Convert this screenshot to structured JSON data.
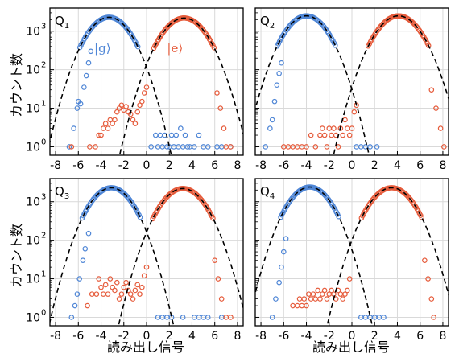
{
  "chart_data": {
    "type": "scatter",
    "ylabel": "カウント数",
    "xlabel": "読み出し信号",
    "ylog": true,
    "xlim": [
      -8.5,
      8.5
    ],
    "ylim_log10": [
      -0.22,
      3.6
    ],
    "xticks": [
      -8,
      -6,
      -4,
      -2,
      0,
      2,
      4,
      6,
      8
    ],
    "yticks": [
      {
        "v": 0,
        "label": "10",
        "exp": "0"
      },
      {
        "v": 1,
        "label": "10",
        "exp": "1"
      },
      {
        "v": 2,
        "label": "10",
        "exp": "2"
      },
      {
        "v": 3,
        "label": "10",
        "exp": "3"
      }
    ],
    "grid": true,
    "colors": {
      "g": "#4f86d6",
      "e": "#e65c3c",
      "fit": "#000000"
    },
    "annotations": {
      "g": "|g⟩",
      "e": "|e⟩"
    },
    "panels": [
      {
        "label_main": "Q",
        "label_sub": "1",
        "show_ann": true,
        "g_fit": {
          "mu": -3.3,
          "sigma": 1.35,
          "peak": 2300
        },
        "e_fit": {
          "mu": 3.3,
          "sigma": 1.4,
          "peak": 2200
        },
        "g_tail": [
          [
            -6.8,
            1
          ],
          [
            -6.4,
            3
          ],
          [
            -6.1,
            10
          ],
          [
            -6.0,
            15
          ],
          [
            -5.8,
            13
          ],
          [
            -5.5,
            35
          ],
          [
            -5.3,
            70
          ],
          [
            -5.1,
            150
          ],
          [
            -4.9,
            300
          ]
        ],
        "g_right": [
          [
            0.4,
            1
          ],
          [
            0.8,
            2
          ],
          [
            1.0,
            1
          ],
          [
            1.2,
            2
          ],
          [
            1.4,
            1
          ],
          [
            1.6,
            2
          ],
          [
            1.8,
            1
          ],
          [
            2.0,
            1
          ],
          [
            2.2,
            2
          ],
          [
            2.4,
            1
          ],
          [
            2.6,
            2
          ],
          [
            2.8,
            1
          ],
          [
            3.0,
            3
          ],
          [
            3.2,
            1
          ],
          [
            3.4,
            2
          ],
          [
            3.6,
            1
          ],
          [
            3.8,
            1
          ],
          [
            4.2,
            1
          ],
          [
            4.6,
            2
          ],
          [
            5.0,
            1
          ],
          [
            5.4,
            1
          ],
          [
            6.2,
            1
          ],
          [
            6.6,
            1
          ],
          [
            7.4,
            1
          ]
        ],
        "e_left": [
          [
            -6.6,
            1
          ],
          [
            -5.0,
            1
          ],
          [
            -4.5,
            1
          ],
          [
            -4.2,
            2
          ],
          [
            -4.0,
            2
          ],
          [
            -3.8,
            3
          ],
          [
            -3.6,
            4
          ],
          [
            -3.4,
            3
          ],
          [
            -3.2,
            5
          ],
          [
            -3.0,
            4
          ],
          [
            -2.8,
            5
          ],
          [
            -2.6,
            8
          ],
          [
            -2.4,
            10
          ],
          [
            -2.2,
            12
          ],
          [
            -2.0,
            9
          ],
          [
            -1.8,
            11
          ],
          [
            -1.6,
            8
          ],
          [
            -1.4,
            7
          ],
          [
            -1.2,
            5
          ],
          [
            -1.0,
            4
          ],
          [
            -0.8,
            8
          ],
          [
            -0.6,
            12
          ],
          [
            -0.4,
            15
          ],
          [
            -0.2,
            25
          ],
          [
            0.0,
            35
          ]
        ],
        "e_tail": [
          [
            6.2,
            25
          ],
          [
            6.5,
            10
          ],
          [
            6.8,
            3
          ],
          [
            7.0,
            1
          ],
          [
            7.4,
            1
          ]
        ]
      },
      {
        "label_main": "Q",
        "label_sub": "2",
        "show_ann": false,
        "g_fit": {
          "mu": -4.0,
          "sigma": 1.35,
          "peak": 2500
        },
        "e_fit": {
          "mu": 4.1,
          "sigma": 1.4,
          "peak": 2500
        },
        "g_tail": [
          [
            -7.6,
            1
          ],
          [
            -7.2,
            3
          ],
          [
            -7.0,
            5
          ],
          [
            -6.8,
            15
          ],
          [
            -6.6,
            40
          ],
          [
            -6.4,
            80
          ],
          [
            -6.2,
            150
          ]
        ],
        "g_right": [
          [
            0.4,
            1
          ],
          [
            0.8,
            1
          ],
          [
            1.2,
            1
          ],
          [
            1.6,
            1
          ],
          [
            2.2,
            1
          ]
        ],
        "e_left": [
          [
            -6.0,
            1
          ],
          [
            -5.6,
            1
          ],
          [
            -5.2,
            1
          ],
          [
            -4.8,
            1
          ],
          [
            -4.4,
            1
          ],
          [
            -4.0,
            1
          ],
          [
            -3.6,
            2
          ],
          [
            -3.2,
            1
          ],
          [
            -2.8,
            2
          ],
          [
            -2.6,
            3
          ],
          [
            -2.4,
            2
          ],
          [
            -2.2,
            1
          ],
          [
            -2.0,
            3
          ],
          [
            -1.8,
            2
          ],
          [
            -1.6,
            3
          ],
          [
            -1.4,
            2
          ],
          [
            -1.2,
            1
          ],
          [
            -1.0,
            3
          ],
          [
            -0.8,
            2
          ],
          [
            -0.6,
            5
          ],
          [
            -0.4,
            3
          ],
          [
            -0.2,
            2
          ],
          [
            0.0,
            3
          ],
          [
            0.2,
            8
          ],
          [
            0.4,
            12
          ]
        ],
        "e_tail": [
          [
            7.0,
            30
          ],
          [
            7.4,
            10
          ],
          [
            7.8,
            3
          ],
          [
            8.1,
            1
          ]
        ]
      },
      {
        "label_main": "Q",
        "label_sub": "3",
        "show_ann": false,
        "g_fit": {
          "mu": -3.1,
          "sigma": 1.35,
          "peak": 2300
        },
        "e_fit": {
          "mu": 3.2,
          "sigma": 1.4,
          "peak": 2200
        },
        "g_tail": [
          [
            -6.6,
            1
          ],
          [
            -6.3,
            2
          ],
          [
            -6.1,
            4
          ],
          [
            -5.9,
            10
          ],
          [
            -5.6,
            30
          ],
          [
            -5.4,
            60
          ],
          [
            -5.1,
            150
          ]
        ],
        "g_right": [
          [
            1.0,
            1
          ],
          [
            1.4,
            1
          ],
          [
            1.8,
            1
          ],
          [
            2.2,
            1
          ],
          [
            3.2,
            1
          ],
          [
            4.2,
            1
          ],
          [
            4.6,
            1
          ],
          [
            5.0,
            1
          ],
          [
            5.4,
            1
          ],
          [
            6.6,
            1
          ]
        ],
        "e_left": [
          [
            -5.2,
            2
          ],
          [
            -4.8,
            4
          ],
          [
            -4.4,
            4
          ],
          [
            -4.2,
            10
          ],
          [
            -4.0,
            6
          ],
          [
            -3.8,
            4
          ],
          [
            -3.6,
            7
          ],
          [
            -3.4,
            4
          ],
          [
            -3.2,
            10
          ],
          [
            -3.0,
            6
          ],
          [
            -2.8,
            5
          ],
          [
            -2.6,
            8
          ],
          [
            -2.4,
            3
          ],
          [
            -2.2,
            4
          ],
          [
            -2.0,
            6
          ],
          [
            -1.8,
            8
          ],
          [
            -1.6,
            5
          ],
          [
            -1.4,
            4
          ],
          [
            -1.2,
            3
          ],
          [
            -1.0,
            5
          ],
          [
            -0.8,
            7
          ],
          [
            -0.6,
            4
          ],
          [
            -0.4,
            6
          ],
          [
            -0.2,
            12
          ],
          [
            0.0,
            20
          ]
        ],
        "e_tail": [
          [
            6.0,
            30
          ],
          [
            6.3,
            10
          ],
          [
            6.6,
            3
          ],
          [
            7.0,
            1
          ],
          [
            7.4,
            1
          ]
        ]
      },
      {
        "label_main": "Q",
        "label_sub": "4",
        "show_ann": false,
        "g_fit": {
          "mu": -3.7,
          "sigma": 1.35,
          "peak": 2400
        },
        "e_fit": {
          "mu": 3.5,
          "sigma": 1.4,
          "peak": 2300
        },
        "g_tail": [
          [
            -7.0,
            1
          ],
          [
            -6.7,
            3
          ],
          [
            -6.4,
            8
          ],
          [
            -6.2,
            20
          ],
          [
            -6.0,
            50
          ],
          [
            -5.8,
            110
          ]
        ],
        "g_right": [
          [
            0.8,
            1
          ],
          [
            1.2,
            1
          ],
          [
            1.6,
            1
          ],
          [
            2.0,
            1
          ],
          [
            2.4,
            1
          ],
          [
            2.8,
            1
          ]
        ],
        "e_left": [
          [
            -5.2,
            2
          ],
          [
            -4.8,
            2
          ],
          [
            -4.6,
            3
          ],
          [
            -4.4,
            2
          ],
          [
            -4.2,
            3
          ],
          [
            -4.0,
            2
          ],
          [
            -3.8,
            4
          ],
          [
            -3.6,
            3
          ],
          [
            -3.4,
            4
          ],
          [
            -3.2,
            3
          ],
          [
            -3.0,
            5
          ],
          [
            -2.8,
            3
          ],
          [
            -2.6,
            4
          ],
          [
            -2.4,
            5
          ],
          [
            -2.2,
            3
          ],
          [
            -2.0,
            4
          ],
          [
            -1.8,
            5
          ],
          [
            -1.6,
            4
          ],
          [
            -1.4,
            3
          ],
          [
            -1.2,
            5
          ],
          [
            -1.0,
            4
          ],
          [
            -0.8,
            3
          ],
          [
            -0.6,
            4
          ],
          [
            -0.4,
            5
          ],
          [
            -0.2,
            10
          ]
        ],
        "e_tail": [
          [
            6.4,
            30
          ],
          [
            6.7,
            10
          ],
          [
            7.0,
            3
          ],
          [
            7.2,
            1
          ]
        ]
      }
    ]
  }
}
